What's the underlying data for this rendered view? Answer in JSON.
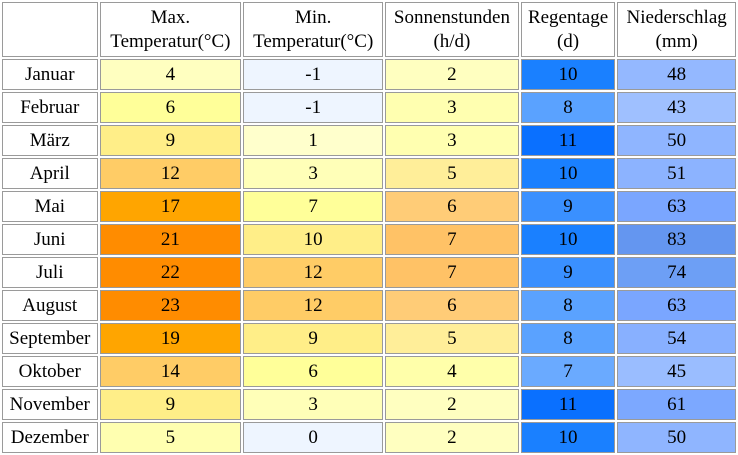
{
  "table": {
    "headers": [
      {
        "line1": "",
        "line2": ""
      },
      {
        "line1": "Max.",
        "line2": "Temperatur(°C)"
      },
      {
        "line1": "Min.",
        "line2": "Temperatur(°C)"
      },
      {
        "line1": "Sonnenstunden",
        "line2": "(h/d)"
      },
      {
        "line1": "Regentage",
        "line2": "(d)"
      },
      {
        "line1": "Niederschlag",
        "line2": "(mm)"
      }
    ],
    "rows": [
      {
        "month": "Januar",
        "cells": [
          {
            "v": "4",
            "c": "#ffffc0"
          },
          {
            "v": "-1",
            "c": "#eef5ff"
          },
          {
            "v": "2",
            "c": "#ffffc0"
          },
          {
            "v": "10",
            "c": "#1a80ff"
          },
          {
            "v": "48",
            "c": "#94b8ff"
          }
        ]
      },
      {
        "month": "Februar",
        "cells": [
          {
            "v": "6",
            "c": "#ffff99"
          },
          {
            "v": "-1",
            "c": "#eef5ff"
          },
          {
            "v": "3",
            "c": "#ffffb0"
          },
          {
            "v": "8",
            "c": "#5aa2ff"
          },
          {
            "v": "43",
            "c": "#9fc0ff"
          }
        ]
      },
      {
        "month": "März",
        "cells": [
          {
            "v": "9",
            "c": "#ffee88"
          },
          {
            "v": "1",
            "c": "#ffffcc"
          },
          {
            "v": "3",
            "c": "#ffffb0"
          },
          {
            "v": "11",
            "c": "#0a70ff"
          },
          {
            "v": "50",
            "c": "#8fb5ff"
          }
        ]
      },
      {
        "month": "April",
        "cells": [
          {
            "v": "12",
            "c": "#ffcc66"
          },
          {
            "v": "3",
            "c": "#ffffb8"
          },
          {
            "v": "5",
            "c": "#ffee99"
          },
          {
            "v": "10",
            "c": "#1a80ff"
          },
          {
            "v": "51",
            "c": "#8cb3ff"
          }
        ]
      },
      {
        "month": "Mai",
        "cells": [
          {
            "v": "17",
            "c": "#ffa500"
          },
          {
            "v": "7",
            "c": "#ffff99"
          },
          {
            "v": "6",
            "c": "#ffcc77"
          },
          {
            "v": "9",
            "c": "#3a90ff"
          },
          {
            "v": "63",
            "c": "#7aa6ff"
          }
        ]
      },
      {
        "month": "Juni",
        "cells": [
          {
            "v": "21",
            "c": "#ff8c00"
          },
          {
            "v": "10",
            "c": "#ffee88"
          },
          {
            "v": "7",
            "c": "#ffc266"
          },
          {
            "v": "10",
            "c": "#1a80ff"
          },
          {
            "v": "83",
            "c": "#6496f0"
          }
        ]
      },
      {
        "month": "Juli",
        "cells": [
          {
            "v": "22",
            "c": "#ff8c00"
          },
          {
            "v": "12",
            "c": "#ffcc66"
          },
          {
            "v": "7",
            "c": "#ffc266"
          },
          {
            "v": "9",
            "c": "#3a90ff"
          },
          {
            "v": "74",
            "c": "#6d9ff5"
          }
        ]
      },
      {
        "month": "August",
        "cells": [
          {
            "v": "23",
            "c": "#ff8c00"
          },
          {
            "v": "12",
            "c": "#ffcc66"
          },
          {
            "v": "6",
            "c": "#ffcc77"
          },
          {
            "v": "8",
            "c": "#5aa2ff"
          },
          {
            "v": "63",
            "c": "#7aa6ff"
          }
        ]
      },
      {
        "month": "September",
        "cells": [
          {
            "v": "19",
            "c": "#ffa500"
          },
          {
            "v": "9",
            "c": "#ffee88"
          },
          {
            "v": "5",
            "c": "#ffee99"
          },
          {
            "v": "8",
            "c": "#5aa2ff"
          },
          {
            "v": "54",
            "c": "#88b0ff"
          }
        ]
      },
      {
        "month": "Oktober",
        "cells": [
          {
            "v": "14",
            "c": "#ffcc66"
          },
          {
            "v": "6",
            "c": "#ffff99"
          },
          {
            "v": "4",
            "c": "#ffffaa"
          },
          {
            "v": "7",
            "c": "#6aaaff"
          },
          {
            "v": "45",
            "c": "#9abdff"
          }
        ]
      },
      {
        "month": "November",
        "cells": [
          {
            "v": "9",
            "c": "#ffee88"
          },
          {
            "v": "3",
            "c": "#ffffb8"
          },
          {
            "v": "2",
            "c": "#ffffc0"
          },
          {
            "v": "11",
            "c": "#0a70ff"
          },
          {
            "v": "61",
            "c": "#7ca8ff"
          }
        ]
      },
      {
        "month": "Dezember",
        "cells": [
          {
            "v": "5",
            "c": "#ffffb0"
          },
          {
            "v": "0",
            "c": "#eef5ff"
          },
          {
            "v": "2",
            "c": "#ffffc0"
          },
          {
            "v": "10",
            "c": "#1a80ff"
          },
          {
            "v": "50",
            "c": "#8fb5ff"
          }
        ]
      }
    ]
  }
}
